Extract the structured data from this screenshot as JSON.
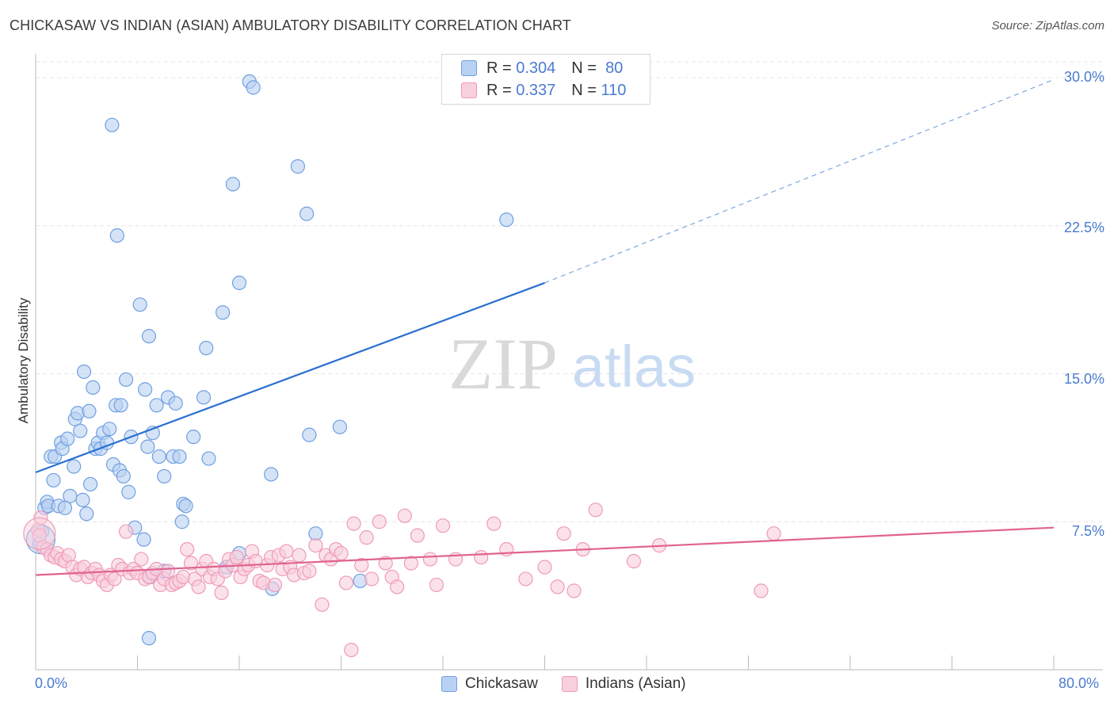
{
  "title": "CHICKASAW VS INDIAN (ASIAN) AMBULATORY DISABILITY CORRELATION CHART",
  "source": "Source: ZipAtlas.com",
  "watermark": {
    "zip": "ZIP",
    "atlas": "atlas"
  },
  "legend": {
    "r_label": "R =",
    "n_label": "N =",
    "series1": {
      "r": "0.304",
      "n": "80"
    },
    "series2": {
      "r": "0.337",
      "n": "110"
    }
  },
  "chart_data": {
    "type": "scatter",
    "title": "CHICKASAW VS INDIAN (ASIAN) AMBULATORY DISABILITY CORRELATION CHART",
    "xlabel": "",
    "ylabel": "Ambulatory Disability",
    "xlim": [
      0,
      80
    ],
    "ylim": [
      0,
      30.8
    ],
    "x_tick_labels": [
      "0.0%",
      "80.0%"
    ],
    "y_ticks": [
      7.5,
      15.0,
      22.5,
      30.0
    ],
    "y_tick_labels": [
      "7.5%",
      "15.0%",
      "22.5%",
      "30.0%"
    ],
    "grid": true,
    "legend_position": "top-center",
    "series": [
      {
        "name": "Chickasaw",
        "color": "#6fa0e0",
        "fill": "#b9d1f2",
        "line_color": "#2b6fd0",
        "trend": {
          "x0": 0,
          "y0": 10.0,
          "x1": 40,
          "y1": 19.6,
          "dash_to_x": 80,
          "dash_to_y": 29.9
        },
        "points": [
          [
            0.3,
            6.4
          ],
          [
            0.5,
            7.0
          ],
          [
            0.7,
            8.2
          ],
          [
            0.9,
            8.5
          ],
          [
            1.0,
            8.3
          ],
          [
            1.2,
            10.8
          ],
          [
            1.4,
            9.6
          ],
          [
            1.5,
            10.8
          ],
          [
            1.8,
            8.3
          ],
          [
            2.0,
            11.5
          ],
          [
            2.1,
            11.2
          ],
          [
            2.3,
            8.2
          ],
          [
            2.5,
            11.7
          ],
          [
            2.7,
            8.8
          ],
          [
            3.0,
            10.3
          ],
          [
            3.1,
            12.7
          ],
          [
            3.3,
            13.0
          ],
          [
            3.5,
            12.1
          ],
          [
            3.7,
            8.6
          ],
          [
            3.8,
            15.1
          ],
          [
            4.2,
            13.1
          ],
          [
            4.3,
            9.4
          ],
          [
            4.5,
            14.3
          ],
          [
            4.7,
            11.2
          ],
          [
            4.9,
            11.5
          ],
          [
            5.1,
            11.2
          ],
          [
            5.3,
            12.0
          ],
          [
            5.6,
            11.5
          ],
          [
            5.8,
            12.2
          ],
          [
            6.0,
            27.6
          ],
          [
            6.1,
            10.4
          ],
          [
            6.3,
            13.4
          ],
          [
            6.4,
            22.0
          ],
          [
            6.6,
            10.1
          ],
          [
            6.7,
            13.4
          ],
          [
            6.9,
            9.8
          ],
          [
            7.1,
            14.7
          ],
          [
            7.3,
            9.0
          ],
          [
            7.5,
            11.8
          ],
          [
            7.8,
            7.2
          ],
          [
            8.2,
            18.5
          ],
          [
            8.5,
            6.6
          ],
          [
            8.6,
            14.2
          ],
          [
            8.8,
            11.3
          ],
          [
            8.9,
            16.9
          ],
          [
            9.2,
            12.0
          ],
          [
            9.5,
            13.4
          ],
          [
            9.7,
            10.8
          ],
          [
            10.1,
            9.8
          ],
          [
            10.4,
            13.8
          ],
          [
            10.8,
            10.8
          ],
          [
            11.0,
            13.5
          ],
          [
            11.3,
            10.8
          ],
          [
            11.5,
            7.5
          ],
          [
            11.6,
            8.4
          ],
          [
            11.8,
            8.3
          ],
          [
            12.4,
            11.8
          ],
          [
            13.2,
            13.8
          ],
          [
            13.4,
            16.3
          ],
          [
            13.6,
            10.7
          ],
          [
            14.7,
            18.1
          ],
          [
            15.5,
            24.6
          ],
          [
            16.0,
            19.6
          ],
          [
            16.8,
            29.8
          ],
          [
            17.1,
            29.5
          ],
          [
            18.5,
            9.9
          ],
          [
            18.6,
            4.1
          ],
          [
            20.6,
            25.5
          ],
          [
            21.3,
            23.1
          ],
          [
            21.5,
            11.9
          ],
          [
            22.0,
            6.9
          ],
          [
            23.9,
            12.3
          ],
          [
            25.5,
            4.5
          ],
          [
            37.0,
            22.8
          ],
          [
            16.0,
            5.9
          ],
          [
            15.0,
            5.2
          ],
          [
            8.9,
            1.6
          ],
          [
            9.0,
            4.7
          ],
          [
            10.1,
            5.0
          ],
          [
            4.0,
            7.9
          ]
        ]
      },
      {
        "name": "Indians (Asian)",
        "color": "#ef9ab8",
        "fill": "#f8cfdc",
        "line_color": "#e0638e",
        "trend": {
          "x0": 0,
          "y0": 4.8,
          "x1": 80,
          "y1": 7.2
        },
        "points": [
          [
            0.2,
            7.1
          ],
          [
            0.3,
            6.8
          ],
          [
            0.4,
            7.7
          ],
          [
            0.6,
            6.2
          ],
          [
            0.9,
            6.1
          ],
          [
            1.2,
            5.8
          ],
          [
            1.5,
            5.7
          ],
          [
            1.7,
            5.9
          ],
          [
            2.0,
            5.6
          ],
          [
            2.3,
            5.5
          ],
          [
            2.6,
            5.8
          ],
          [
            2.9,
            5.2
          ],
          [
            3.2,
            4.8
          ],
          [
            3.5,
            5.1
          ],
          [
            3.8,
            5.2
          ],
          [
            4.1,
            4.7
          ],
          [
            4.4,
            4.9
          ],
          [
            4.7,
            5.1
          ],
          [
            5.0,
            4.8
          ],
          [
            5.3,
            4.5
          ],
          [
            5.6,
            4.3
          ],
          [
            5.9,
            4.8
          ],
          [
            6.2,
            4.6
          ],
          [
            6.5,
            5.3
          ],
          [
            6.8,
            5.1
          ],
          [
            7.1,
            7.0
          ],
          [
            7.4,
            4.9
          ],
          [
            7.7,
            5.1
          ],
          [
            8.0,
            4.9
          ],
          [
            8.3,
            5.6
          ],
          [
            8.6,
            4.6
          ],
          [
            8.9,
            4.7
          ],
          [
            9.2,
            4.9
          ],
          [
            9.5,
            5.1
          ],
          [
            9.8,
            4.3
          ],
          [
            10.1,
            4.6
          ],
          [
            10.4,
            5.0
          ],
          [
            10.7,
            4.3
          ],
          [
            11.0,
            4.4
          ],
          [
            11.3,
            4.5
          ],
          [
            11.6,
            4.7
          ],
          [
            11.9,
            6.1
          ],
          [
            12.2,
            5.4
          ],
          [
            12.5,
            4.6
          ],
          [
            12.8,
            4.2
          ],
          [
            13.1,
            5.1
          ],
          [
            13.4,
            5.5
          ],
          [
            13.7,
            4.7
          ],
          [
            14.0,
            5.1
          ],
          [
            14.3,
            4.6
          ],
          [
            14.6,
            3.9
          ],
          [
            14.9,
            5.0
          ],
          [
            15.2,
            5.6
          ],
          [
            15.5,
            5.3
          ],
          [
            15.8,
            5.7
          ],
          [
            16.1,
            4.7
          ],
          [
            16.4,
            5.1
          ],
          [
            16.7,
            5.3
          ],
          [
            17.0,
            6.0
          ],
          [
            17.3,
            5.5
          ],
          [
            17.6,
            4.5
          ],
          [
            17.9,
            4.4
          ],
          [
            18.2,
            5.3
          ],
          [
            18.5,
            5.7
          ],
          [
            18.8,
            4.3
          ],
          [
            19.1,
            5.8
          ],
          [
            19.4,
            5.1
          ],
          [
            19.7,
            6.0
          ],
          [
            20.0,
            5.2
          ],
          [
            20.3,
            4.8
          ],
          [
            20.7,
            5.8
          ],
          [
            21.1,
            4.9
          ],
          [
            21.5,
            5.0
          ],
          [
            22.0,
            6.3
          ],
          [
            22.5,
            3.3
          ],
          [
            22.8,
            5.8
          ],
          [
            23.2,
            5.6
          ],
          [
            23.6,
            6.1
          ],
          [
            24.0,
            5.9
          ],
          [
            24.4,
            4.4
          ],
          [
            24.8,
            1.0
          ],
          [
            25.0,
            7.4
          ],
          [
            25.6,
            5.3
          ],
          [
            26.0,
            6.7
          ],
          [
            26.4,
            4.6
          ],
          [
            27.0,
            7.5
          ],
          [
            27.5,
            5.4
          ],
          [
            28.0,
            4.7
          ],
          [
            28.4,
            4.2
          ],
          [
            29.0,
            7.8
          ],
          [
            29.5,
            5.4
          ],
          [
            30.0,
            6.8
          ],
          [
            31.0,
            5.6
          ],
          [
            31.5,
            4.3
          ],
          [
            32.0,
            7.3
          ],
          [
            33.0,
            5.6
          ],
          [
            35.0,
            5.7
          ],
          [
            36.0,
            7.4
          ],
          [
            37.0,
            6.1
          ],
          [
            38.5,
            4.6
          ],
          [
            40.0,
            5.2
          ],
          [
            41.0,
            4.2
          ],
          [
            41.5,
            6.9
          ],
          [
            42.3,
            4.0
          ],
          [
            43.0,
            6.1
          ],
          [
            44.0,
            8.1
          ],
          [
            47.0,
            5.5
          ],
          [
            49.0,
            6.3
          ],
          [
            57.0,
            4.0
          ],
          [
            58.0,
            6.9
          ]
        ]
      }
    ]
  }
}
